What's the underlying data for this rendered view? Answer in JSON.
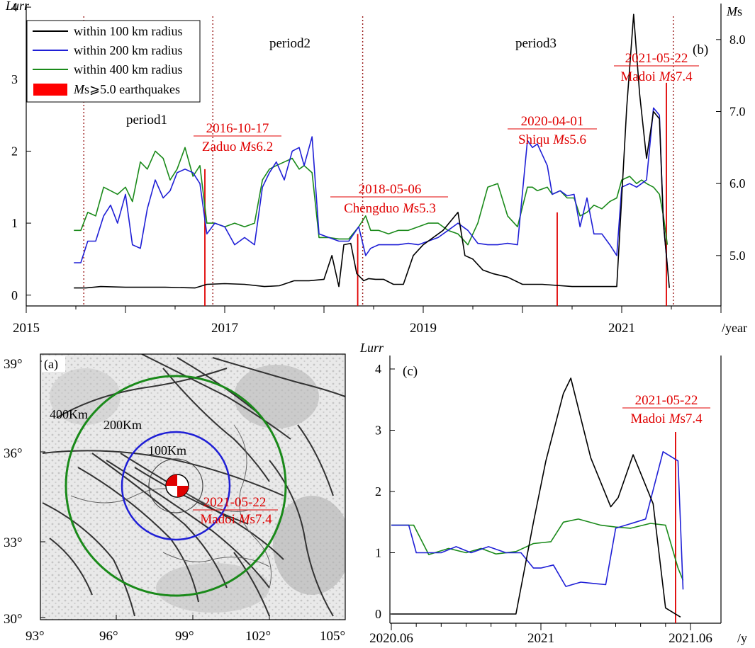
{
  "colors": {
    "black": "#000000",
    "blue": "#1f1fd6",
    "green": "#1a8a1a",
    "red": "#e00000",
    "darkred": "#9a1a1a"
  },
  "top": {
    "ylabel_left": "Lurr",
    "ylabel_right_it": "M",
    "ylabel_right_rest": "s",
    "panel_label": "(b)",
    "xunit": "/year",
    "legend": [
      {
        "label": "within 100 km radius",
        "color": "#000000"
      },
      {
        "label": "within 200 km radius",
        "color": "#1f1fd6"
      },
      {
        "label": "within 400 km radius",
        "color": "#1a8a1a"
      }
    ],
    "legend_eq": {
      "it": "M",
      "rest": "s⩾5.0 earthquakes"
    },
    "periods": [
      "period1",
      "period2",
      "period3"
    ],
    "annotations": [
      {
        "date": "2016-10-17",
        "place": "Zaduo ",
        "it": "M",
        "mag": "s6.2"
      },
      {
        "date": "2018-05-06",
        "place": "Chengduo ",
        "it": "M",
        "mag": "s5.3"
      },
      {
        "date": "2020-04-01",
        "place": "Shiqu ",
        "it": "M",
        "mag": "s5.6"
      },
      {
        "date": "2021-05-22",
        "place": "Madoi ",
        "it": "M",
        "mag": "s7.4"
      }
    ]
  },
  "map": {
    "panel_label": "(a)",
    "radii": [
      "400Km",
      "200Km",
      "100Km"
    ],
    "eq_date": "2021-05-22",
    "eq_place": "Madoi ",
    "eq_it": "M",
    "eq_mag": "s7.4",
    "yticks": [
      "39°",
      "36°",
      "33°",
      "30°"
    ],
    "xticks": [
      "93°",
      "96°",
      "99°",
      "102°",
      "105°"
    ]
  },
  "zoom": {
    "ylabel": "Lurr",
    "panel_label": "(c)",
    "xunit": "/y",
    "annotation": {
      "date": "2021-05-22",
      "place": "Madoi ",
      "it": "M",
      "mag": "s7.4"
    }
  },
  "chart_data": [
    {
      "type": "line",
      "title": "",
      "xlabel": "/year",
      "ylabel": "Lurr",
      "y2label": "Ms",
      "xlim": [
        2015.0,
        2022.0
      ],
      "ylim": [
        -0.15,
        4.05
      ],
      "y2lim": [
        4.3,
        8.5
      ],
      "xticks": [
        2015,
        2017,
        2019,
        2021
      ],
      "xtick_labels": [
        "2015",
        "2017",
        "2019",
        "2021"
      ],
      "yticks": [
        0,
        1,
        2,
        3,
        4
      ],
      "ytick_labels": [
        "0",
        "1",
        "2",
        "3",
        "4"
      ],
      "y2ticks": [
        5.0,
        6.0,
        7.0,
        8.0
      ],
      "y2tick_labels": [
        "5.0",
        "6.0",
        "7.0",
        "8.0"
      ],
      "series": [
        {
          "name": "within 100 km radius",
          "color": "#000000",
          "x": [
            2015.48,
            2015.6,
            2015.75,
            2016.0,
            2016.4,
            2016.7,
            2016.82,
            2017.0,
            2017.2,
            2017.4,
            2017.55,
            2017.7,
            2017.85,
            2018.0,
            2018.08,
            2018.15,
            2018.2,
            2018.27,
            2018.33,
            2018.4,
            2018.45,
            2018.52,
            2018.6,
            2018.7,
            2018.8,
            2018.9,
            2019.0,
            2019.2,
            2019.35,
            2019.42,
            2019.5,
            2019.6,
            2019.7,
            2019.85,
            2020.0,
            2020.2,
            2020.5,
            2020.7,
            2020.95,
            2021.05,
            2021.12,
            2021.18,
            2021.25,
            2021.32,
            2021.38,
            2021.42,
            2021.48
          ],
          "y": [
            0.1,
            0.1,
            0.12,
            0.11,
            0.11,
            0.1,
            0.15,
            0.16,
            0.15,
            0.12,
            0.13,
            0.2,
            0.2,
            0.22,
            0.55,
            0.12,
            0.7,
            0.72,
            0.3,
            0.2,
            0.23,
            0.22,
            0.22,
            0.15,
            0.15,
            0.55,
            0.7,
            0.9,
            1.15,
            0.55,
            0.5,
            0.35,
            0.3,
            0.25,
            0.15,
            0.15,
            0.12,
            0.12,
            0.12,
            2.6,
            3.9,
            2.8,
            1.9,
            2.55,
            2.45,
            1.0,
            0.1
          ]
        },
        {
          "name": "within 200 km radius",
          "color": "#1f1fd6",
          "x": [
            2015.48,
            2015.55,
            2015.62,
            2015.7,
            2015.78,
            2015.85,
            2015.92,
            2016.0,
            2016.07,
            2016.15,
            2016.22,
            2016.3,
            2016.38,
            2016.45,
            2016.52,
            2016.6,
            2016.68,
            2016.75,
            2016.82,
            2016.9,
            2017.0,
            2017.1,
            2017.2,
            2017.3,
            2017.38,
            2017.45,
            2017.52,
            2017.6,
            2017.68,
            2017.75,
            2017.8,
            2017.88,
            2017.95,
            2018.05,
            2018.15,
            2018.25,
            2018.35,
            2018.42,
            2018.47,
            2018.55,
            2018.65,
            2018.75,
            2018.85,
            2018.95,
            2019.05,
            2019.15,
            2019.25,
            2019.35,
            2019.45,
            2019.55,
            2019.65,
            2019.75,
            2019.85,
            2019.95,
            2020.05,
            2020.1,
            2020.15,
            2020.25,
            2020.3,
            2020.38,
            2020.45,
            2020.52,
            2020.58,
            2020.65,
            2020.72,
            2020.8,
            2020.88,
            2020.95,
            2021.0,
            2021.08,
            2021.15,
            2021.2,
            2021.25,
            2021.32,
            2021.38,
            2021.42,
            2021.46
          ],
          "y": [
            0.45,
            0.45,
            0.75,
            0.75,
            1.1,
            1.25,
            1.0,
            1.4,
            0.7,
            0.65,
            1.2,
            1.6,
            1.35,
            1.45,
            1.7,
            1.75,
            1.7,
            1.55,
            0.85,
            1.0,
            0.95,
            0.7,
            0.8,
            0.7,
            1.5,
            1.7,
            1.85,
            1.6,
            2.0,
            2.05,
            1.8,
            2.2,
            0.85,
            0.8,
            0.75,
            0.75,
            0.95,
            0.55,
            0.65,
            0.7,
            0.7,
            0.7,
            0.72,
            0.7,
            0.75,
            0.8,
            0.9,
            1.0,
            0.9,
            0.72,
            0.7,
            0.7,
            0.72,
            0.7,
            2.15,
            2.05,
            2.1,
            1.8,
            1.4,
            1.45,
            1.38,
            1.4,
            0.95,
            1.35,
            0.85,
            0.85,
            0.7,
            0.55,
            1.5,
            1.55,
            1.5,
            1.55,
            1.6,
            2.6,
            2.5,
            1.0,
            0.4
          ]
        },
        {
          "name": "within 400 km radius",
          "color": "#1a8a1a",
          "x": [
            2015.48,
            2015.55,
            2015.62,
            2015.7,
            2015.78,
            2015.85,
            2015.92,
            2016.0,
            2016.07,
            2016.15,
            2016.22,
            2016.3,
            2016.38,
            2016.45,
            2016.52,
            2016.6,
            2016.68,
            2016.75,
            2016.82,
            2016.9,
            2017.0,
            2017.1,
            2017.2,
            2017.3,
            2017.38,
            2017.45,
            2017.52,
            2017.6,
            2017.68,
            2017.75,
            2017.8,
            2017.88,
            2017.95,
            2018.05,
            2018.15,
            2018.25,
            2018.35,
            2018.42,
            2018.47,
            2018.55,
            2018.65,
            2018.75,
            2018.85,
            2018.95,
            2019.05,
            2019.15,
            2019.25,
            2019.35,
            2019.45,
            2019.55,
            2019.65,
            2019.75,
            2019.85,
            2019.95,
            2020.05,
            2020.1,
            2020.15,
            2020.25,
            2020.3,
            2020.38,
            2020.45,
            2020.52,
            2020.58,
            2020.65,
            2020.72,
            2020.8,
            2020.88,
            2020.95,
            2021.0,
            2021.08,
            2021.15,
            2021.2,
            2021.25,
            2021.32,
            2021.38,
            2021.42,
            2021.46
          ],
          "y": [
            0.9,
            0.9,
            1.15,
            1.1,
            1.5,
            1.45,
            1.4,
            1.5,
            1.3,
            1.85,
            1.75,
            2.0,
            1.9,
            1.6,
            1.75,
            2.05,
            1.65,
            1.8,
            1.0,
            1.0,
            0.95,
            1.0,
            0.95,
            1.0,
            1.6,
            1.75,
            1.8,
            1.85,
            1.9,
            1.75,
            1.8,
            1.7,
            0.8,
            0.8,
            0.78,
            0.78,
            0.95,
            1.1,
            0.9,
            0.9,
            0.85,
            0.9,
            0.9,
            0.95,
            1.0,
            1.0,
            0.9,
            0.85,
            0.7,
            1.0,
            1.5,
            1.55,
            1.1,
            0.95,
            1.5,
            1.5,
            1.45,
            1.5,
            1.4,
            1.45,
            1.35,
            1.35,
            1.1,
            1.15,
            1.25,
            1.2,
            1.3,
            1.35,
            1.6,
            1.65,
            1.55,
            1.6,
            1.55,
            1.5,
            1.4,
            1.1,
            0.7
          ]
        }
      ],
      "earthquakes": [
        {
          "date": "2016-10-17",
          "x": 2016.8,
          "ms": 6.2
        },
        {
          "date": "2018-05-06",
          "x": 2018.34,
          "ms": 5.3
        },
        {
          "date": "2020-04-01",
          "x": 2020.35,
          "ms": 5.6
        },
        {
          "date": "2021-05-22",
          "x": 2021.45,
          "ms": 7.4
        }
      ],
      "period_boundaries": [
        2015.58,
        2016.88,
        2018.39,
        2021.52
      ]
    },
    {
      "type": "line",
      "title": "",
      "xlabel": "/y",
      "ylabel": "Lurr",
      "xlim": [
        0.0,
        12.4
      ],
      "ylim": [
        -0.1,
        4.15
      ],
      "xticks": [
        0,
        6,
        12
      ],
      "xtick_labels": [
        "2020.06",
        "2021",
        "2021.06"
      ],
      "yticks": [
        0,
        1,
        2,
        3,
        4
      ],
      "ytick_labels": [
        "0",
        "1",
        "2",
        "3",
        "4"
      ],
      "series": [
        {
          "name": "within 100 km radius",
          "color": "#000000",
          "x": [
            0.0,
            3.0,
            5.0,
            5.7,
            6.2,
            6.9,
            7.2,
            8.0,
            8.8,
            9.1,
            9.7,
            10.5,
            11.0,
            11.6
          ],
          "y": [
            0.0,
            0.0,
            0.0,
            1.5,
            2.5,
            3.6,
            3.85,
            2.55,
            1.75,
            1.9,
            2.6,
            1.8,
            0.1,
            -0.05
          ]
        },
        {
          "name": "within 200 km radius",
          "color": "#1f1fd6",
          "x": [
            0.0,
            0.7,
            1.0,
            2.0,
            2.6,
            3.2,
            3.9,
            4.6,
            5.2,
            5.7,
            6.0,
            6.5,
            7.0,
            7.6,
            8.1,
            8.6,
            9.0,
            9.8,
            10.2,
            10.9,
            11.5,
            11.7
          ],
          "y": [
            1.45,
            1.45,
            1.0,
            1.0,
            1.1,
            1.0,
            1.1,
            1.0,
            1.0,
            0.75,
            0.75,
            0.8,
            0.45,
            0.52,
            0.5,
            0.48,
            1.4,
            1.5,
            1.55,
            2.65,
            2.5,
            0.4
          ]
        },
        {
          "name": "within 400 km radius",
          "color": "#1a8a1a",
          "x": [
            0.0,
            0.9,
            1.5,
            2.3,
            3.0,
            3.6,
            4.2,
            5.0,
            5.7,
            6.4,
            6.9,
            7.5,
            8.4,
            9.0,
            9.6,
            10.4,
            11.0,
            11.5,
            11.7
          ],
          "y": [
            1.45,
            1.45,
            0.97,
            1.07,
            1.0,
            1.07,
            0.98,
            1.02,
            1.15,
            1.18,
            1.5,
            1.55,
            1.45,
            1.42,
            1.4,
            1.48,
            1.45,
            0.75,
            0.55
          ]
        }
      ],
      "earthquakes": [
        {
          "date": "2021-05-22",
          "x": 11.4
        }
      ]
    }
  ]
}
